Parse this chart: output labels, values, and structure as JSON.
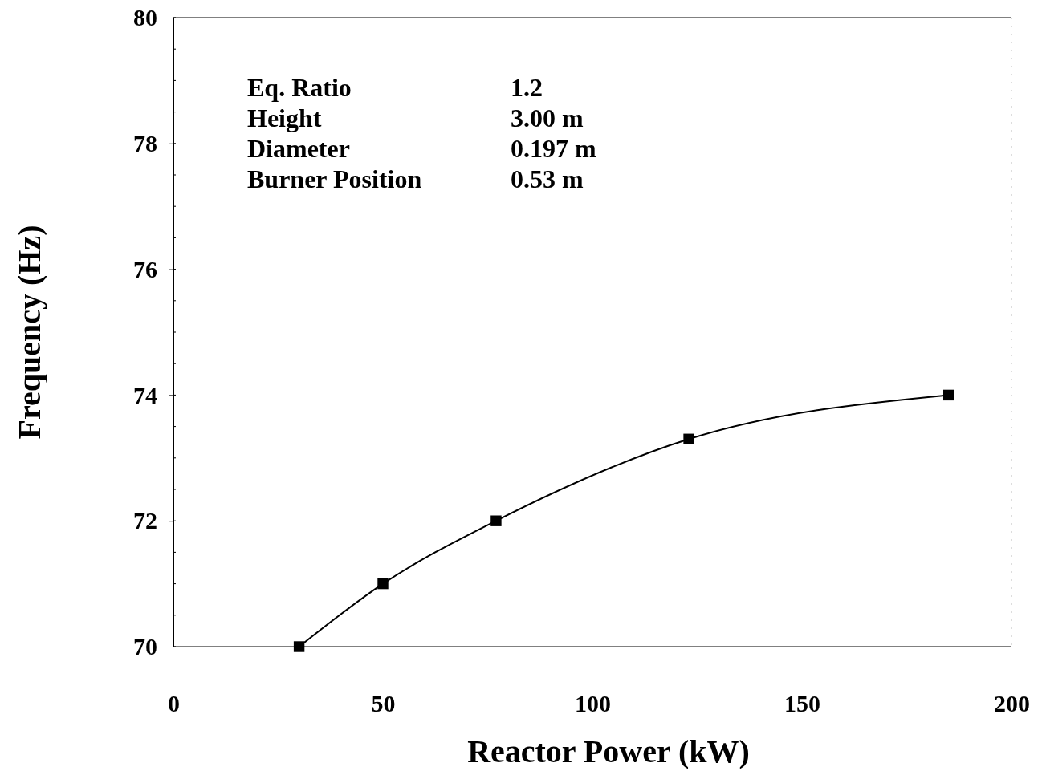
{
  "chart_data": {
    "type": "line",
    "xlabel": "Reactor Power (kW)",
    "ylabel": "Frequency (Hz)",
    "x": [
      30,
      50,
      77,
      123,
      185
    ],
    "series": [
      {
        "color": "#000000",
        "values": [
          70,
          71,
          72,
          73.3,
          74
        ]
      }
    ],
    "xlim": [
      0,
      200
    ],
    "xticks": [
      0,
      50,
      100,
      150,
      200
    ],
    "ylim": [
      70,
      80
    ],
    "yticks": [
      70,
      72,
      74,
      76,
      78,
      80
    ],
    "marker": "square",
    "line_style": "solid",
    "annotations": [
      "Eq. Ratio",
      "1.2",
      "Height",
      "3.00 m",
      "Diameter",
      "0.197 m",
      "Burner Position",
      "0.53 m"
    ]
  }
}
